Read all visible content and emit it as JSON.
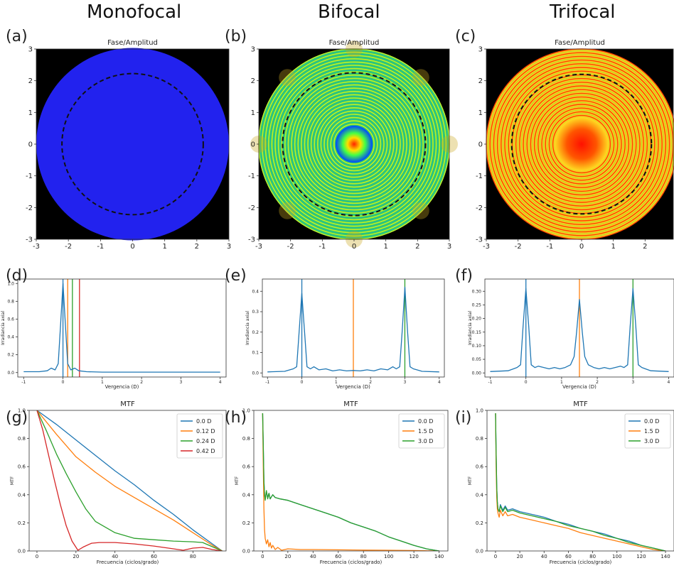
{
  "columns": [
    "Monofocal",
    "Bifocal",
    "Trifocal"
  ],
  "panel_letters": [
    "(a)",
    "(b)",
    "(c)",
    "(d)",
    "(e)",
    "(f)",
    "(g)",
    "(h)",
    "(i)"
  ],
  "colors": {
    "c0": "#1f77b4",
    "c1": "#ff7f0e",
    "c2": "#2ca02c",
    "c3": "#d62728"
  },
  "chart_data": [
    {
      "id": "a",
      "type": "heatmap",
      "title": "Fase/Amplitud",
      "pattern": "uniform",
      "fill_color": "#2222ee",
      "pupil_radius": 3,
      "dashed_circle_radius": 2.2,
      "xlim": [
        -3,
        3
      ],
      "ylim": [
        -3,
        3
      ],
      "xticks": [
        -3,
        -2,
        -1,
        0,
        1,
        2,
        3
      ],
      "yticks": [
        3,
        2,
        1,
        0,
        -1,
        -2,
        -3
      ]
    },
    {
      "id": "b",
      "type": "heatmap",
      "title": "Fase/Amplitud",
      "pattern": "diffractive-rings",
      "pupil_radius": 3,
      "dashed_circle_radius": 2.25,
      "xlim": [
        -3,
        3
      ],
      "ylim": [
        -3,
        3
      ],
      "xticks": [
        -3,
        -2,
        -1,
        0,
        1,
        2,
        3
      ],
      "yticks": [
        3,
        2,
        1,
        0,
        -1,
        -2,
        -3
      ]
    },
    {
      "id": "c",
      "type": "heatmap",
      "title": "Fase/Amplitud",
      "pattern": "diffractive-rings",
      "pupil_radius": 3,
      "dashed_circle_radius": 2.2,
      "xlim": [
        -3,
        3
      ],
      "ylim": [
        -3,
        3
      ],
      "xticks": [
        -3,
        -2,
        -1,
        0,
        1,
        2
      ],
      "yticks": [
        3,
        2,
        1,
        0,
        -1,
        -2,
        -3
      ]
    },
    {
      "id": "d",
      "type": "line",
      "xlabel": "Vergencia (D)",
      "ylabel": "Irradiancia axial",
      "xlim": [
        -1.15,
        4.15
      ],
      "ylim": [
        -0.05,
        1.05
      ],
      "xticks": [
        -1,
        0,
        1,
        2,
        3,
        4
      ],
      "yticks": [
        0.0,
        0.2,
        0.4,
        0.6,
        0.8,
        1.0
      ],
      "tick_format": "1",
      "series": [
        {
          "x": [
            -1,
            -0.6,
            -0.4,
            -0.3,
            -0.2,
            -0.12,
            -0.06,
            0,
            0.06,
            0.12,
            0.2,
            0.3,
            0.4,
            0.6,
            1,
            2,
            3,
            4
          ],
          "y": [
            0.01,
            0.01,
            0.02,
            0.05,
            0.03,
            0.1,
            0.55,
            1.0,
            0.55,
            0.1,
            0.03,
            0.05,
            0.02,
            0.01,
            0.005,
            0.005,
            0.005,
            0.005
          ]
        }
      ],
      "vlines": [
        0.0,
        0.12,
        0.24,
        0.42
      ]
    },
    {
      "id": "e",
      "type": "line",
      "xlabel": "Vergencia (D)",
      "ylabel": "Irradiancia axial",
      "xlim": [
        -1.15,
        4.15
      ],
      "ylim": [
        -0.02,
        0.46
      ],
      "xticks": [
        -1,
        0,
        1,
        2,
        3,
        4
      ],
      "yticks": [
        0.0,
        0.1,
        0.2,
        0.3,
        0.4
      ],
      "tick_format": "1",
      "series": [
        {
          "x": [
            -1,
            -0.5,
            -0.35,
            -0.25,
            -0.15,
            -0.08,
            0,
            0.08,
            0.15,
            0.25,
            0.35,
            0.5,
            0.7,
            0.9,
            1.1,
            1.3,
            1.5,
            1.7,
            1.9,
            2.1,
            2.3,
            2.5,
            2.65,
            2.75,
            2.85,
            2.92,
            3.0,
            3.08,
            3.15,
            3.25,
            3.35,
            3.5,
            4
          ],
          "y": [
            0.005,
            0.008,
            0.015,
            0.02,
            0.03,
            0.2,
            0.39,
            0.2,
            0.03,
            0.02,
            0.03,
            0.015,
            0.02,
            0.01,
            0.015,
            0.01,
            0.012,
            0.01,
            0.015,
            0.01,
            0.02,
            0.015,
            0.03,
            0.02,
            0.03,
            0.2,
            0.42,
            0.2,
            0.03,
            0.02,
            0.015,
            0.008,
            0.005
          ]
        }
      ],
      "vlines": [
        0.0,
        1.5,
        3.0
      ]
    },
    {
      "id": "f",
      "type": "line",
      "xlabel": "Vergencia (D)",
      "ylabel": "Irradiancia axial",
      "xlim": [
        -1.15,
        4.15
      ],
      "ylim": [
        -0.015,
        0.345
      ],
      "xticks": [
        -1,
        0,
        1,
        2,
        3,
        4
      ],
      "yticks": [
        0.0,
        0.05,
        0.1,
        0.15,
        0.2,
        0.25,
        0.3
      ],
      "tick_format": "2",
      "series": [
        {
          "x": [
            -1,
            -0.5,
            -0.35,
            -0.25,
            -0.15,
            -0.08,
            0,
            0.08,
            0.15,
            0.25,
            0.35,
            0.5,
            0.65,
            0.8,
            0.95,
            1.1,
            1.25,
            1.35,
            1.42,
            1.5,
            1.58,
            1.65,
            1.75,
            1.9,
            2.05,
            2.2,
            2.35,
            2.5,
            2.65,
            2.75,
            2.85,
            2.92,
            3.0,
            3.08,
            3.15,
            3.25,
            3.35,
            3.5,
            4
          ],
          "y": [
            0.005,
            0.008,
            0.015,
            0.02,
            0.03,
            0.17,
            0.31,
            0.17,
            0.03,
            0.02,
            0.025,
            0.02,
            0.015,
            0.02,
            0.015,
            0.02,
            0.03,
            0.06,
            0.15,
            0.27,
            0.15,
            0.06,
            0.03,
            0.02,
            0.015,
            0.02,
            0.015,
            0.02,
            0.025,
            0.02,
            0.03,
            0.17,
            0.31,
            0.17,
            0.03,
            0.02,
            0.015,
            0.008,
            0.005
          ]
        }
      ],
      "vlines": [
        0.0,
        1.5,
        3.0
      ]
    },
    {
      "id": "g",
      "type": "line",
      "title": "MTF",
      "xlabel": "Frecuencia (ciclos/grado)",
      "ylabel": "MTF",
      "xlim": [
        -4,
        97
      ],
      "ylim": [
        0,
        1.0
      ],
      "xticks": [
        0,
        20,
        40,
        60,
        80
      ],
      "yticks": [
        0.0,
        0.2,
        0.4,
        0.6,
        0.8,
        1.0
      ],
      "tick_format": "1",
      "legend": "top-right",
      "series": [
        {
          "name": "0.0 D",
          "x": [
            0,
            10,
            20,
            30,
            40,
            50,
            60,
            70,
            80,
            90,
            95
          ],
          "y": [
            1.0,
            0.9,
            0.79,
            0.68,
            0.57,
            0.47,
            0.36,
            0.26,
            0.15,
            0.05,
            0.0
          ]
        },
        {
          "name": "0.12 D",
          "x": [
            0,
            10,
            20,
            30,
            40,
            50,
            60,
            70,
            80,
            90,
            95
          ],
          "y": [
            1.0,
            0.83,
            0.67,
            0.56,
            0.46,
            0.38,
            0.3,
            0.22,
            0.13,
            0.04,
            0.0
          ]
        },
        {
          "name": "0.24 D",
          "x": [
            0,
            5,
            10,
            15,
            20,
            25,
            30,
            40,
            50,
            60,
            70,
            80,
            85,
            90,
            95
          ],
          "y": [
            1.0,
            0.85,
            0.69,
            0.55,
            0.42,
            0.3,
            0.21,
            0.13,
            0.09,
            0.08,
            0.07,
            0.065,
            0.06,
            0.03,
            0.0
          ]
        },
        {
          "name": "0.42 D",
          "x": [
            0,
            3,
            6,
            9,
            12,
            15,
            18,
            21,
            24,
            28,
            32,
            40,
            50,
            60,
            70,
            75,
            80,
            85,
            90,
            95
          ],
          "y": [
            1.0,
            0.86,
            0.68,
            0.5,
            0.33,
            0.18,
            0.07,
            0.005,
            0.03,
            0.055,
            0.06,
            0.06,
            0.05,
            0.035,
            0.015,
            0.005,
            0.02,
            0.025,
            0.01,
            0.0
          ]
        }
      ]
    },
    {
      "id": "h",
      "type": "line",
      "title": "MTF",
      "xlabel": "Frecuencia (ciclos/grado)",
      "ylabel": "MTF",
      "xlim": [
        -7,
        147
      ],
      "ylim": [
        0,
        1.0
      ],
      "xticks": [
        0,
        20,
        40,
        60,
        80,
        100,
        120,
        140
      ],
      "yticks": [
        0.0,
        0.2,
        0.4,
        0.6,
        0.8,
        1.0
      ],
      "tick_format": "1",
      "legend": "top-right",
      "series": [
        {
          "name": "0.0 D",
          "x": [
            0,
            0.5,
            1,
            1.5,
            2,
            3,
            4,
            5,
            6,
            8,
            10,
            14,
            20,
            30,
            40,
            50,
            60,
            70,
            80,
            90,
            100,
            110,
            120,
            130,
            140
          ],
          "y": [
            0.98,
            0.75,
            0.5,
            0.4,
            0.37,
            0.42,
            0.38,
            0.41,
            0.37,
            0.4,
            0.38,
            0.37,
            0.36,
            0.33,
            0.3,
            0.27,
            0.24,
            0.2,
            0.17,
            0.14,
            0.1,
            0.07,
            0.04,
            0.015,
            0.0
          ]
        },
        {
          "name": "1.5 D",
          "x": [
            0,
            0.5,
            1,
            1.5,
            2,
            3,
            4,
            5,
            6,
            7,
            8,
            10,
            12,
            15,
            20,
            30,
            40,
            60,
            80,
            100,
            120,
            140
          ],
          "y": [
            0.98,
            0.6,
            0.3,
            0.15,
            0.09,
            0.05,
            0.08,
            0.03,
            0.06,
            0.02,
            0.04,
            0.01,
            0.025,
            0.005,
            0.015,
            0.01,
            0.01,
            0.008,
            0.006,
            0.005,
            0.003,
            0.0
          ]
        },
        {
          "name": "3.0 D",
          "x": [
            0,
            0.5,
            1,
            1.5,
            2,
            3,
            4,
            5,
            6,
            8,
            10,
            14,
            20,
            30,
            40,
            50,
            60,
            70,
            80,
            90,
            100,
            110,
            120,
            130,
            140
          ],
          "y": [
            0.98,
            0.75,
            0.5,
            0.4,
            0.36,
            0.43,
            0.37,
            0.41,
            0.37,
            0.4,
            0.38,
            0.37,
            0.36,
            0.33,
            0.3,
            0.27,
            0.24,
            0.2,
            0.17,
            0.14,
            0.1,
            0.07,
            0.04,
            0.015,
            0.0
          ]
        }
      ]
    },
    {
      "id": "i",
      "type": "line",
      "title": "MTF",
      "xlabel": "Frecuencia (ciclos/grado)",
      "ylabel": "MTF",
      "xlim": [
        -7,
        147
      ],
      "ylim": [
        0,
        1.0
      ],
      "xticks": [
        0,
        20,
        40,
        60,
        80,
        100,
        120,
        140
      ],
      "yticks": [
        0.0,
        0.2,
        0.4,
        0.6,
        0.8,
        1.0
      ],
      "tick_format": "1",
      "legend": "top-right",
      "series": [
        {
          "name": "0.0 D",
          "x": [
            0,
            0.5,
            1,
            1.5,
            2,
            3,
            4,
            6,
            8,
            10,
            14,
            20,
            30,
            40,
            50,
            60,
            70,
            80,
            90,
            100,
            110,
            120,
            130,
            140
          ],
          "y": [
            0.98,
            0.7,
            0.45,
            0.35,
            0.3,
            0.28,
            0.33,
            0.29,
            0.32,
            0.29,
            0.3,
            0.28,
            0.26,
            0.24,
            0.21,
            0.19,
            0.16,
            0.14,
            0.12,
            0.09,
            0.07,
            0.04,
            0.02,
            0.0
          ]
        },
        {
          "name": "1.5 D",
          "x": [
            0,
            0.5,
            1,
            1.5,
            2,
            3,
            4,
            6,
            8,
            10,
            14,
            20,
            30,
            40,
            50,
            60,
            70,
            80,
            90,
            100,
            110,
            120,
            130,
            140
          ],
          "y": [
            0.98,
            0.6,
            0.38,
            0.3,
            0.27,
            0.24,
            0.29,
            0.25,
            0.28,
            0.25,
            0.26,
            0.24,
            0.22,
            0.2,
            0.18,
            0.16,
            0.13,
            0.11,
            0.09,
            0.07,
            0.05,
            0.03,
            0.01,
            0.0
          ]
        },
        {
          "name": "3.0 D",
          "x": [
            0,
            0.5,
            1,
            1.5,
            2,
            3,
            4,
            6,
            8,
            10,
            14,
            20,
            30,
            40,
            50,
            60,
            70,
            80,
            90,
            100,
            110,
            120,
            130,
            140
          ],
          "y": [
            0.98,
            0.7,
            0.45,
            0.35,
            0.3,
            0.28,
            0.32,
            0.28,
            0.31,
            0.28,
            0.29,
            0.27,
            0.25,
            0.23,
            0.21,
            0.18,
            0.16,
            0.14,
            0.11,
            0.09,
            0.06,
            0.04,
            0.02,
            0.0
          ]
        }
      ]
    }
  ]
}
